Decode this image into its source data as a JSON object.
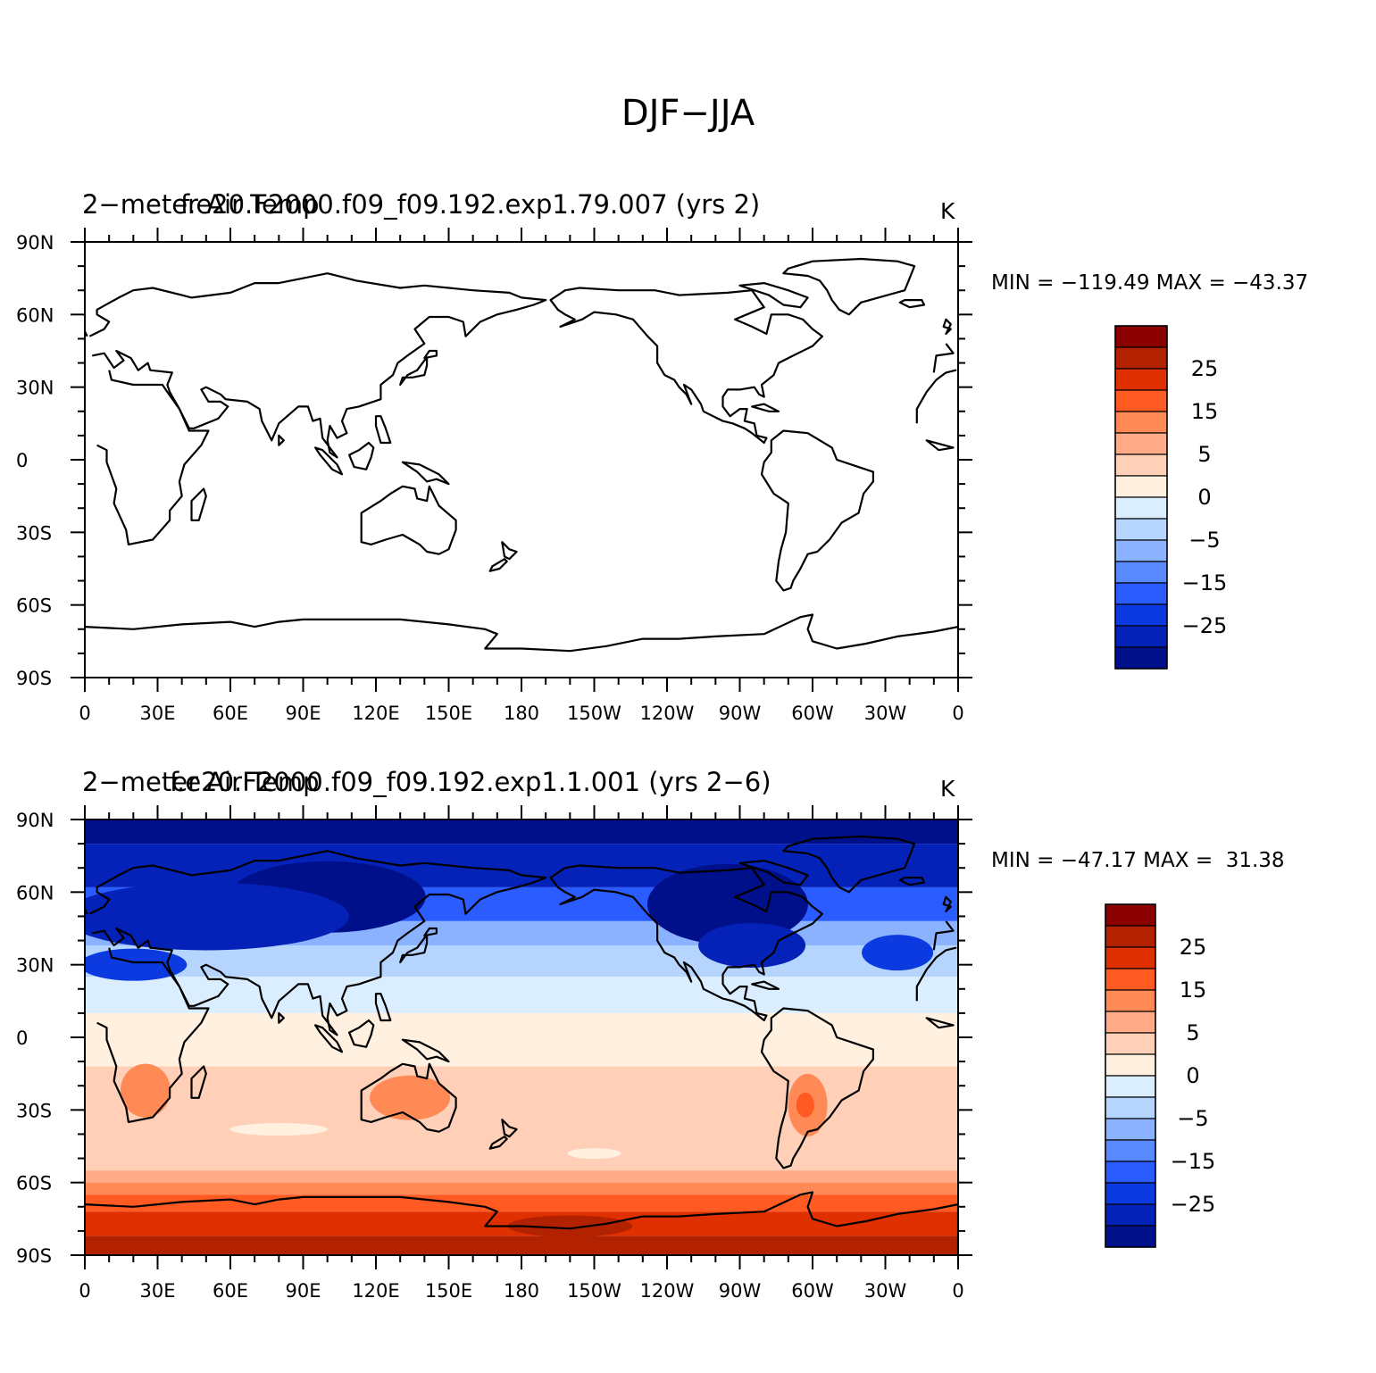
{
  "figure": {
    "title": "DJF-JJA"
  },
  "panels": [
    {
      "left_string": "2-meter Air Temp",
      "center_string": "f.e20.F2000.f09_f09.192.exp1.79.007 (yrs 2)",
      "right_string": "K",
      "stats": {
        "min_label": "MIN =",
        "min_value": "-119.49",
        "max_label": "MAX =",
        "max_value": "-43.37"
      },
      "filled": false
    },
    {
      "left_string": "2-meter Air Temp",
      "center_string": "f.e20.F2000.f09_f09.192.exp1.1.001 (yrs 2-6)",
      "right_string": "K",
      "stats": {
        "min_label": "MIN =",
        "min_value": "-47.17",
        "max_label": "MAX =",
        "max_value": "31.38"
      },
      "filled": true
    }
  ],
  "axes": {
    "lon_ticks": [
      "0",
      "30E",
      "60E",
      "90E",
      "120E",
      "150E",
      "180",
      "150W",
      "120W",
      "90W",
      "60W",
      "30W",
      "0"
    ],
    "lat_ticks": [
      "90N",
      "60N",
      "30N",
      "0",
      "30S",
      "60S",
      "90S"
    ]
  },
  "colorbar": {
    "labels": [
      "25",
      "15",
      "5",
      "0",
      "-5",
      "-15",
      "-25"
    ],
    "colors": [
      "#8b0000",
      "#b22200",
      "#e03000",
      "#ff5a22",
      "#ff8a55",
      "#ffab88",
      "#ffcfb8",
      "#fff0e0",
      "#dbeeff",
      "#b5d5ff",
      "#8ab2ff",
      "#5a8aff",
      "#2a5cff",
      "#0a3ae0",
      "#0422b8",
      "#00108a"
    ]
  }
}
